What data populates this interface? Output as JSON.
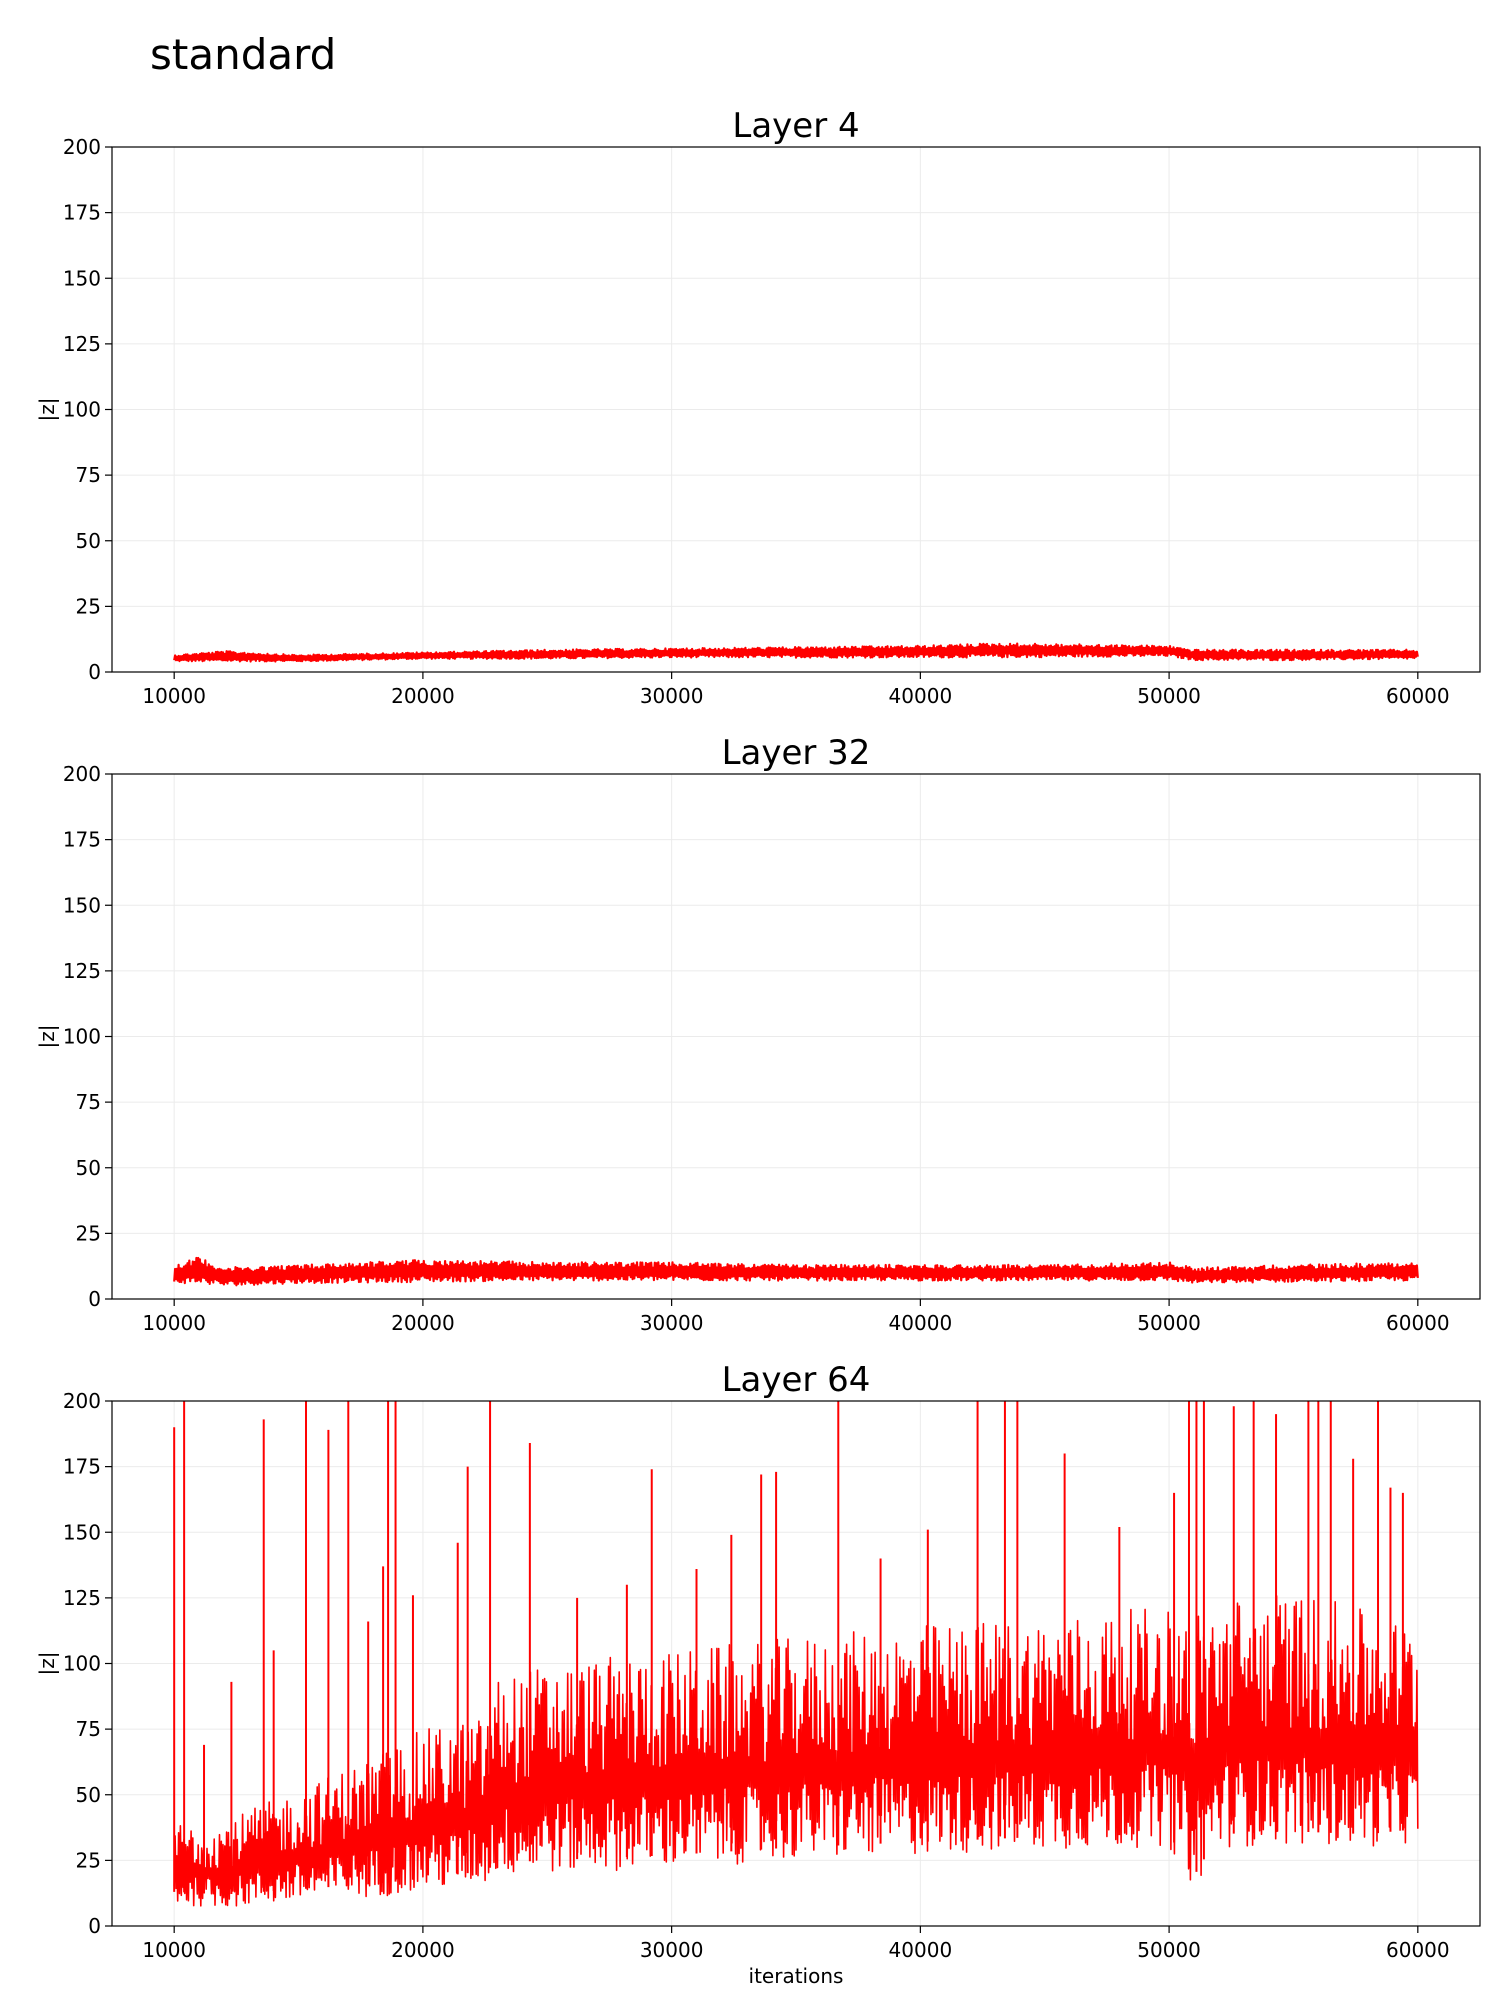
{
  "figure": {
    "title": "standard"
  },
  "colors": {
    "series": "#ff0000",
    "grid": "#ebebeb",
    "axis": "#000000"
  },
  "chart_data": [
    {
      "type": "line",
      "title": "Layer 4",
      "xlabel": "",
      "ylabel": "|z|",
      "xlim": [
        7500,
        62500
      ],
      "ylim": [
        0,
        200
      ],
      "xticks": [
        10000,
        20000,
        30000,
        40000,
        50000,
        60000
      ],
      "yticks": [
        0,
        25,
        50,
        75,
        100,
        125,
        150,
        175,
        200
      ],
      "grid": true,
      "x_range": [
        10000,
        60000
      ],
      "series": [
        {
          "x": [
            10000,
            12000,
            15000,
            20000,
            25000,
            30000,
            35000,
            40000,
            43000,
            50000,
            51000,
            55000,
            60000
          ],
          "low": [
            4,
            4,
            4,
            5,
            5,
            5.5,
            5.5,
            5.5,
            5.5,
            6,
            4.5,
            4.5,
            5
          ],
          "high": [
            6.5,
            8,
            6.5,
            7.5,
            8.5,
            9,
            9.5,
            10,
            11,
            10,
            8.5,
            8.5,
            8.5
          ],
          "mean": [
            5,
            5,
            5,
            6,
            6.5,
            7,
            7.5,
            7.5,
            8,
            8,
            6,
            6,
            6
          ]
        }
      ]
    },
    {
      "type": "line",
      "title": "Layer 32",
      "xlabel": "",
      "ylabel": "|z|",
      "xlim": [
        7500,
        62500
      ],
      "ylim": [
        0,
        200
      ],
      "xticks": [
        10000,
        20000,
        30000,
        40000,
        50000,
        60000
      ],
      "yticks": [
        0,
        25,
        50,
        75,
        100,
        125,
        150,
        175,
        200
      ],
      "grid": true,
      "x_range": [
        10000,
        60000
      ],
      "series": [
        {
          "x": [
            10000,
            11000,
            12000,
            15000,
            20000,
            25000,
            30000,
            35000,
            40000,
            45000,
            50000,
            51000,
            55000,
            60000
          ],
          "low": [
            6,
            6,
            5,
            6,
            6.5,
            7,
            7,
            7,
            7,
            7,
            7,
            6,
            6.5,
            7
          ],
          "high": [
            13,
            16,
            12,
            13,
            15,
            14,
            14,
            13,
            13,
            13,
            14,
            12,
            13,
            14
          ],
          "mean": [
            9,
            10,
            8,
            9,
            9.5,
            10,
            10,
            10,
            10,
            10,
            10,
            9,
            9.5,
            10
          ]
        }
      ]
    },
    {
      "type": "line",
      "title": "Layer 64",
      "xlabel": "iterations",
      "ylabel": "|z|",
      "xlim": [
        7500,
        62500
      ],
      "ylim": [
        0,
        200
      ],
      "xticks": [
        10000,
        20000,
        30000,
        40000,
        50000,
        60000
      ],
      "yticks": [
        0,
        25,
        50,
        75,
        100,
        125,
        150,
        175,
        200
      ],
      "grid": true,
      "x_range": [
        10000,
        60000
      ],
      "series": [
        {
          "x": [
            10000,
            12000,
            15000,
            18000,
            20000,
            22500,
            23000,
            25000,
            30000,
            35000,
            40000,
            45000,
            50000,
            51000,
            52000,
            55000,
            58000,
            60000
          ],
          "low": [
            8,
            7,
            9,
            11,
            13,
            16,
            19,
            20,
            22,
            25,
            27,
            29,
            30,
            14,
            30,
            31,
            30,
            32
          ],
          "high": [
            40,
            40,
            52,
            65,
            75,
            80,
            95,
            100,
            105,
            110,
            115,
            118,
            122,
            120,
            125,
            128,
            120,
            115
          ],
          "spikes": [
            [
              10000,
              190
            ],
            [
              10400,
              200
            ],
            [
              11200,
              69
            ],
            [
              12300,
              93
            ],
            [
              13600,
              193
            ],
            [
              14000,
              105
            ],
            [
              15300,
              200
            ],
            [
              16200,
              189
            ],
            [
              17000,
              200
            ],
            [
              17800,
              116
            ],
            [
              18400,
              137
            ],
            [
              18600,
              200
            ],
            [
              18900,
              200
            ],
            [
              19600,
              126
            ],
            [
              21400,
              146
            ],
            [
              21800,
              175
            ],
            [
              22700,
              200
            ],
            [
              24300,
              184
            ],
            [
              26200,
              125
            ],
            [
              28200,
              130
            ],
            [
              29200,
              174
            ],
            [
              31000,
              136
            ],
            [
              32400,
              149
            ],
            [
              33600,
              172
            ],
            [
              34200,
              173
            ],
            [
              36700,
              200
            ],
            [
              38400,
              140
            ],
            [
              40300,
              151
            ],
            [
              42300,
              200
            ],
            [
              43400,
              200
            ],
            [
              43900,
              200
            ],
            [
              45800,
              180
            ],
            [
              48000,
              152
            ],
            [
              50200,
              165
            ],
            [
              50800,
              200
            ],
            [
              51100,
              200
            ],
            [
              51400,
              200
            ],
            [
              52600,
              198
            ],
            [
              53400,
              200
            ],
            [
              54300,
              195
            ],
            [
              55600,
              200
            ],
            [
              56000,
              200
            ],
            [
              56500,
              200
            ],
            [
              57400,
              178
            ],
            [
              58400,
              200
            ],
            [
              58900,
              167
            ],
            [
              59400,
              165
            ]
          ]
        }
      ]
    }
  ]
}
